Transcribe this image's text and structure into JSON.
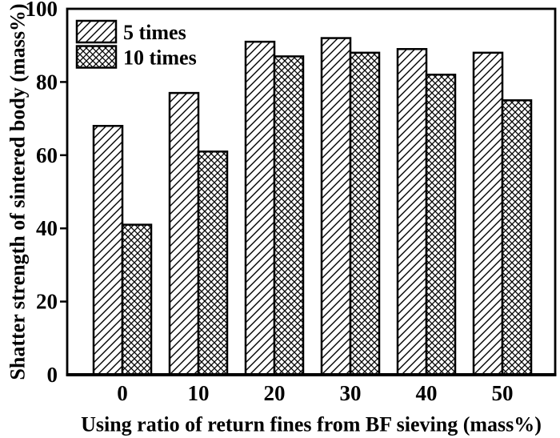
{
  "figure": {
    "background": "#ffffff",
    "foreground": "#000000"
  },
  "chart_data": {
    "type": "bar",
    "title": "",
    "categories": [
      "0",
      "10",
      "20",
      "30",
      "40",
      "50"
    ],
    "series": [
      {
        "name": "5 times",
        "hatch": "diagonal-lines",
        "values": [
          68,
          77,
          91,
          92,
          89,
          88
        ]
      },
      {
        "name": "10 times",
        "hatch": "crosshatch",
        "values": [
          41,
          61,
          87,
          88,
          82,
          75
        ]
      }
    ],
    "xlabel": "Using ratio of return fines from BF sieving (mass%)",
    "ylabel": "Shatter strength of sintered body (mass%)",
    "ylim": [
      0,
      100
    ],
    "yticks": [
      0,
      20,
      40,
      60,
      80,
      100
    ],
    "legend": {
      "position": "top-left",
      "entries": [
        "5 times",
        "10 times"
      ]
    },
    "grid": false,
    "bar_fill": "#ffffff",
    "bar_stroke": "#000000"
  }
}
